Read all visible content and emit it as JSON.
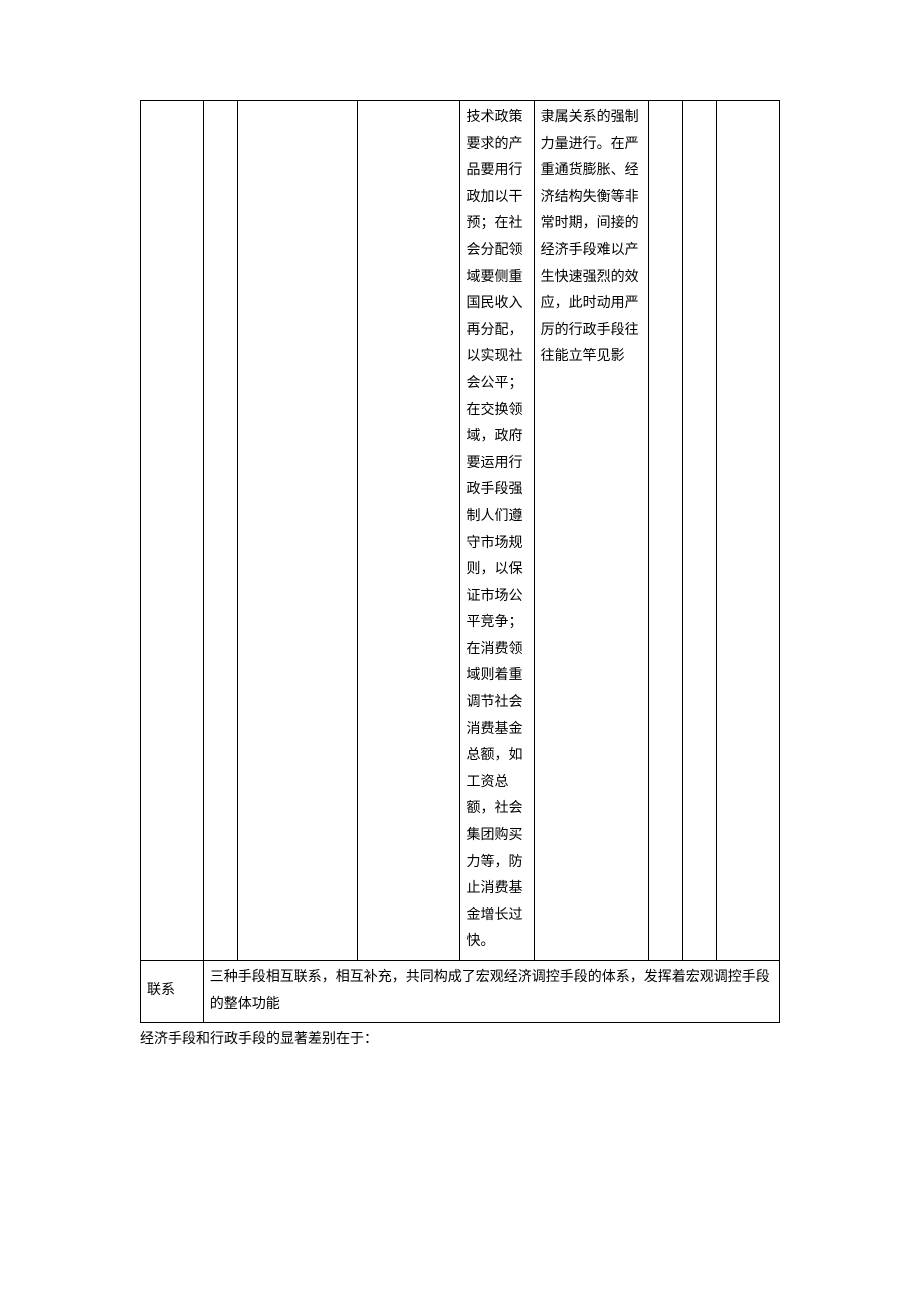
{
  "table": {
    "row1": {
      "cell_d": "技术政策要求的产品要用行政加以干预；在社会分配领域要侧重国民收入再分配，以实现社会公平；在交换领域，政府要运用行政手段强制人们遵守市场规则，以保证市场公平竞争；在消费领域则着重调节社会消费基金总额，如工资总额，社会集团购买力等，防止消费基金增长过快。",
      "cell_e": "隶属关系的强制力量进行。在严重通货膨胀、经济结构失衡等非常时期，间接的经济手段难以产生快速强烈的效应，此时动用严厉的行政手段往往能立竿见影"
    },
    "row2": {
      "label": "联系",
      "content": "三种手段相互联系，相互补充，共同构成了宏观经济调控手段的体系，发挥着宏观调控手段的整体功能"
    }
  },
  "footnote": "经济手段和行政手段的显著差别在于："
}
